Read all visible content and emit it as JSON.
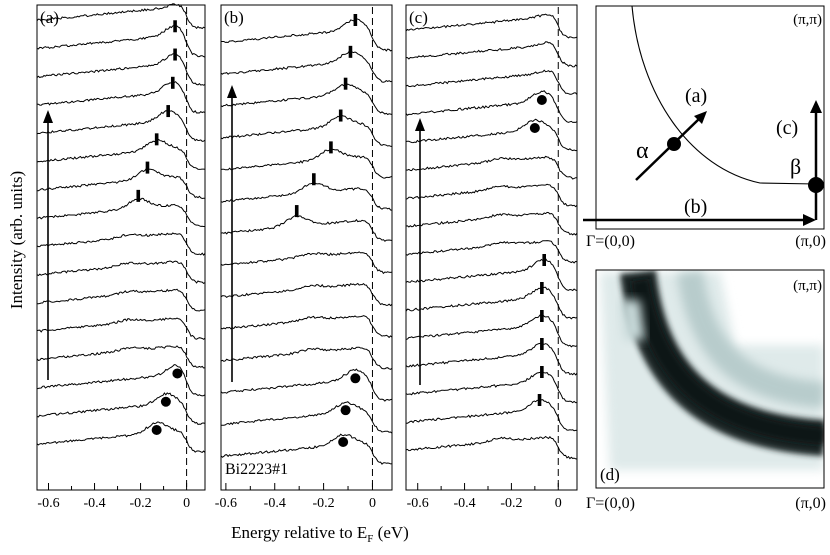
{
  "chart_data": [
    {
      "type": "line",
      "panel": "a",
      "title": "(a)",
      "xlim": [
        -0.65,
        0.08
      ],
      "xticks": [
        -0.6,
        -0.4,
        -0.2,
        0
      ],
      "tick_labels": [
        "-0.6",
        "-0.4",
        "-0.2",
        "0"
      ],
      "fermi_level_ev": 0,
      "curve_count": 16,
      "arrow": "up",
      "peak_markers": [
        {
          "curve": 14,
          "energy": -0.05,
          "style": "bar"
        },
        {
          "curve": 13,
          "energy": -0.05,
          "style": "bar"
        },
        {
          "curve": 12,
          "energy": -0.06,
          "style": "bar"
        },
        {
          "curve": 11,
          "energy": -0.08,
          "style": "bar"
        },
        {
          "curve": 10,
          "energy": -0.13,
          "style": "bar"
        },
        {
          "curve": 9,
          "energy": -0.17,
          "style": "bar"
        },
        {
          "curve": 8,
          "energy": -0.21,
          "style": "bar"
        },
        {
          "curve": 2,
          "energy": -0.04,
          "style": "dot"
        },
        {
          "curve": 1,
          "energy": -0.09,
          "style": "dot"
        },
        {
          "curve": 0,
          "energy": -0.13,
          "style": "dot"
        }
      ]
    },
    {
      "type": "line",
      "panel": "b",
      "title": "(b)",
      "sample": "Bi2223#1",
      "xlim": [
        -0.62,
        0.08
      ],
      "xticks": [
        -0.6,
        -0.4,
        -0.2,
        0
      ],
      "tick_labels": [
        "-0.6",
        "-0.4",
        "-0.2",
        "0"
      ],
      "fermi_level_ev": 0,
      "curve_count": 14,
      "arrow": "up",
      "peak_markers": [
        {
          "curve": 13,
          "energy": -0.07,
          "style": "bar"
        },
        {
          "curve": 12,
          "energy": -0.09,
          "style": "bar"
        },
        {
          "curve": 11,
          "energy": -0.11,
          "style": "bar"
        },
        {
          "curve": 10,
          "energy": -0.13,
          "style": "bar"
        },
        {
          "curve": 9,
          "energy": -0.17,
          "style": "bar"
        },
        {
          "curve": 8,
          "energy": -0.24,
          "style": "bar"
        },
        {
          "curve": 7,
          "energy": -0.31,
          "style": "bar"
        },
        {
          "curve": 2,
          "energy": -0.07,
          "style": "dot"
        },
        {
          "curve": 1,
          "energy": -0.11,
          "style": "dot"
        },
        {
          "curve": 0,
          "energy": -0.12,
          "style": "dot"
        }
      ]
    },
    {
      "type": "line",
      "panel": "c",
      "title": "(c)",
      "xlim": [
        -0.65,
        0.08
      ],
      "xticks": [
        -0.6,
        -0.4,
        -0.2,
        0
      ],
      "tick_labels": [
        "-0.6",
        "-0.4",
        "-0.2",
        "0"
      ],
      "fermi_level_ev": 0,
      "curve_count": 16,
      "arrow": "up",
      "peak_markers": [
        {
          "curve": 12,
          "energy": -0.07,
          "style": "dot"
        },
        {
          "curve": 11,
          "energy": -0.1,
          "style": "dot"
        },
        {
          "curve": 6,
          "energy": -0.06,
          "style": "bar"
        },
        {
          "curve": 5,
          "energy": -0.07,
          "style": "bar"
        },
        {
          "curve": 4,
          "energy": -0.07,
          "style": "bar"
        },
        {
          "curve": 3,
          "energy": -0.07,
          "style": "bar"
        },
        {
          "curve": 2,
          "energy": -0.07,
          "style": "bar"
        },
        {
          "curve": 1,
          "energy": -0.08,
          "style": "bar"
        }
      ]
    },
    {
      "type": "diagram",
      "panel": "brillouin-zone",
      "corner_top_right": "(π,π)",
      "origin_label": "Γ=(0,0)",
      "corner_bottom_right": "(π,0)",
      "cut_labels": [
        "(a)",
        "(b)",
        "(c)"
      ],
      "point_labels": [
        "α",
        "β"
      ]
    },
    {
      "type": "heatmap",
      "panel": "d",
      "title": "(d)",
      "corner_top_right": "(π,π)",
      "origin_label": "Γ=(0,0)",
      "corner_bottom_right": "(π,0)"
    }
  ],
  "axes": {
    "ylabel": "Intensity (arb. units)",
    "xlabel_main": "Energy relative to E",
    "xlabel_sub": "F",
    "xlabel_unit": " (eV)"
  }
}
